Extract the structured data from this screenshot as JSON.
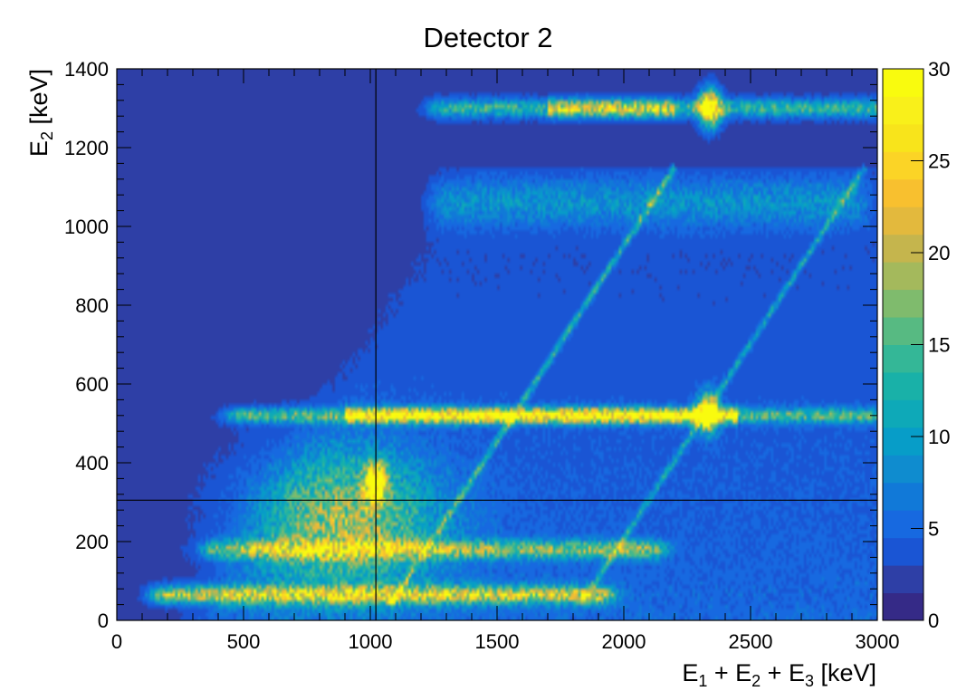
{
  "chart_data": {
    "type": "heatmap",
    "title": "Detector 2",
    "xlabel": {
      "parts": [
        {
          "t": "E",
          "sub": false
        },
        {
          "t": "1",
          "sub": true
        },
        {
          "t": " + E",
          "sub": false
        },
        {
          "t": "2",
          "sub": true
        },
        {
          "t": " + E",
          "sub": false
        },
        {
          "t": "3",
          "sub": true
        },
        {
          "t": " [keV]",
          "sub": false
        }
      ]
    },
    "ylabel": {
      "parts": [
        {
          "t": "E",
          "sub": false
        },
        {
          "t": "2",
          "sub": true
        },
        {
          "t": " [keV]",
          "sub": false
        }
      ]
    },
    "xlim": [
      0,
      3000
    ],
    "ylim": [
      0,
      1400
    ],
    "x_ticks": [
      0,
      500,
      1000,
      1500,
      2000,
      2500,
      3000
    ],
    "y_ticks": [
      0,
      200,
      400,
      600,
      800,
      1000,
      1200,
      1400
    ],
    "colorbar": {
      "min": 0,
      "max": 30,
      "ticks": [
        0,
        5,
        10,
        15,
        20,
        25,
        30
      ]
    },
    "cursor_lines": {
      "x": 1022,
      "y": 305
    },
    "background_color": "#2e3fa6",
    "features": [
      {
        "name": "annihilation-band",
        "kind": "horizontal",
        "y": 520,
        "x_range": [
          500,
          3000
        ],
        "peak_counts": 30
      },
      {
        "name": "photopeak-band",
        "kind": "horizontal",
        "y": 1300,
        "x_range": [
          1300,
          3000
        ],
        "peak_counts": 22
      },
      {
        "name": "diffuse-band",
        "kind": "horizontal",
        "y": 1060,
        "x_range": [
          1300,
          2900
        ],
        "peak_counts": 6
      },
      {
        "name": "low-energy-band",
        "kind": "horizontal",
        "y": 65,
        "x_range": [
          200,
          1900
        ],
        "peak_counts": 18
      },
      {
        "name": "mid-band",
        "kind": "horizontal",
        "y": 180,
        "x_range": [
          400,
          2100
        ],
        "peak_counts": 14
      },
      {
        "name": "compton-region",
        "kind": "region",
        "x_range": [
          500,
          1300
        ],
        "y_range": [
          50,
          450
        ],
        "peak_counts": 25
      },
      {
        "name": "diagonal-line-1",
        "kind": "diagonal",
        "from": [
          1100,
          60
        ],
        "to": [
          2150,
          1100
        ],
        "peak_counts": 10
      },
      {
        "name": "diagonal-line-2",
        "kind": "diagonal",
        "from": [
          1850,
          60
        ],
        "to": [
          2900,
          1100
        ],
        "peak_counts": 8
      },
      {
        "name": "hotspot-1",
        "kind": "spot",
        "x": 1020,
        "y": 350,
        "peak_counts": 30
      },
      {
        "name": "hotspot-2",
        "kind": "spot",
        "x": 2340,
        "y": 1300,
        "peak_counts": 30
      },
      {
        "name": "hotspot-3",
        "kind": "spot",
        "x": 2330,
        "y": 525,
        "peak_counts": 30
      }
    ],
    "palette": [
      "#352a87",
      "#2e3fa6",
      "#1a55d4",
      "#1769e0",
      "#1179d8",
      "#0f8ccf",
      "#079dc8",
      "#0ea9b8",
      "#19b1a8",
      "#34b797",
      "#57ba82",
      "#7fbb6d",
      "#a4b95c",
      "#c5b54d",
      "#e3b93d",
      "#f8c02f",
      "#fbd426",
      "#f8e41b",
      "#f9f01a",
      "#f9fb0e"
    ]
  }
}
